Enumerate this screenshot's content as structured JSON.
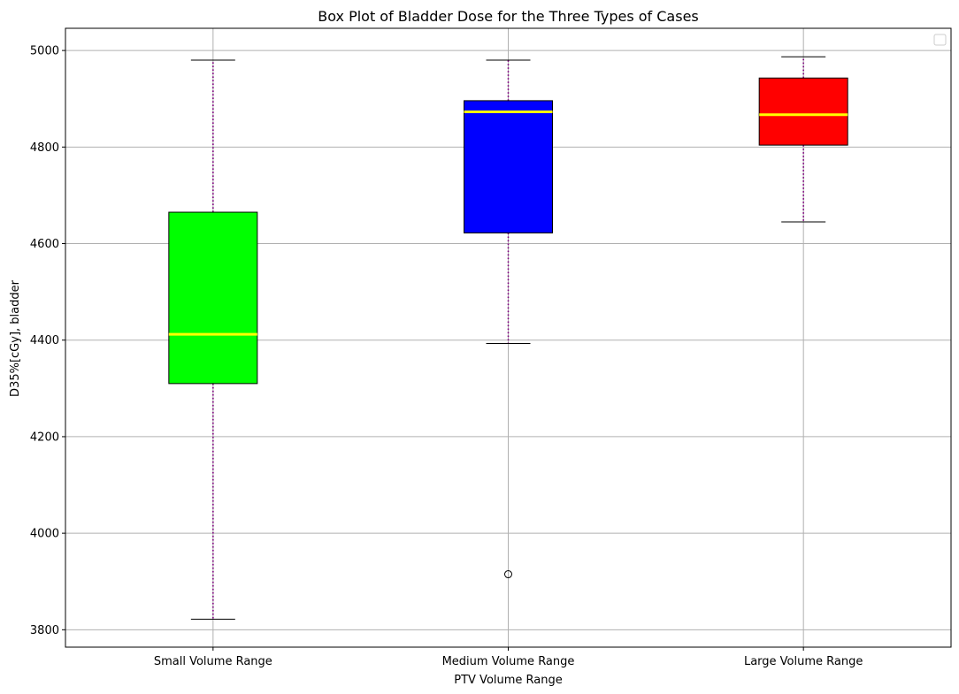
{
  "chart_data": {
    "type": "box",
    "title": "Box Plot of Bladder Dose for the Three Types of Cases",
    "xlabel": "PTV Volume Range",
    "ylabel": "D35%[cGy], bladder",
    "categories": [
      "Small Volume Range",
      "Medium Volume Range",
      "Large Volume Range"
    ],
    "boxes": [
      {
        "category": "Small Volume Range",
        "whisker_low": 3822,
        "q1": 4310,
        "median": 4412,
        "q3": 4665,
        "whisker_high": 4980,
        "outliers": [],
        "color": "#00ff00"
      },
      {
        "category": "Medium Volume Range",
        "whisker_low": 4393,
        "q1": 4622,
        "median": 4873,
        "q3": 4896,
        "whisker_high": 4980,
        "outliers": [
          3915
        ],
        "color": "#0000ff"
      },
      {
        "category": "Large Volume Range",
        "whisker_low": 4645,
        "q1": 4804,
        "median": 4867,
        "q3": 4943,
        "whisker_high": 4987,
        "outliers": [],
        "color": "#ff0000"
      }
    ],
    "y_ticks": [
      "3800",
      "4000",
      "4200",
      "4400",
      "4600",
      "4800",
      "5000"
    ],
    "ylim": [
      3764,
      5046
    ],
    "grid": true,
    "legend": "upper right, empty",
    "median_color": "#ffff00",
    "whisker_color": "#800080",
    "whisker_style": "dotted"
  }
}
